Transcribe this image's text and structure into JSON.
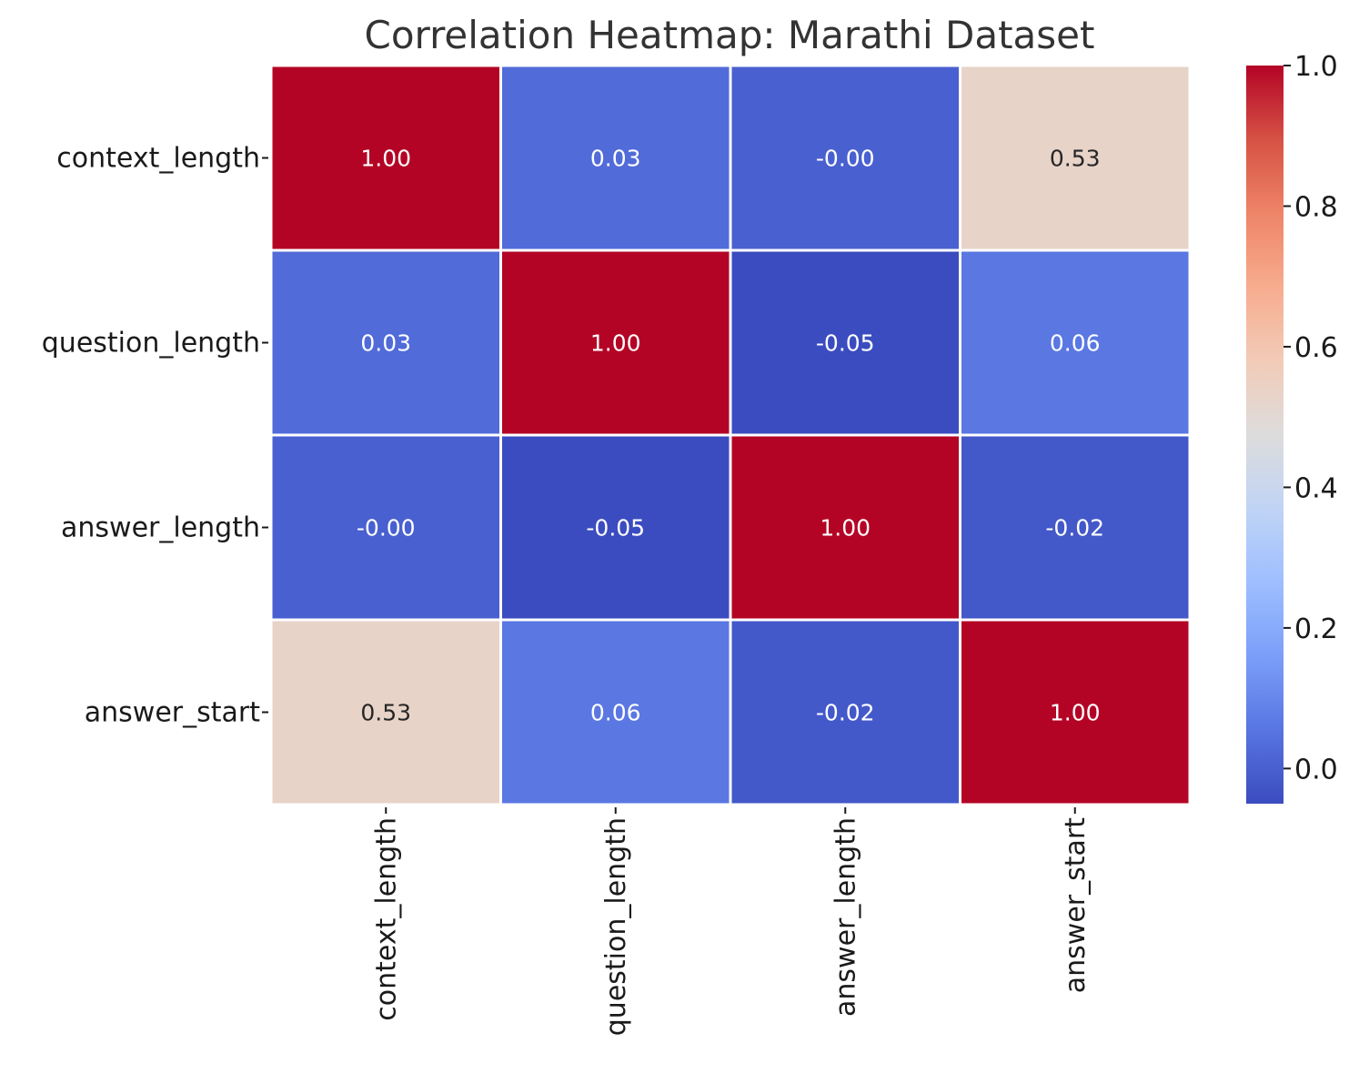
{
  "chart_data": {
    "type": "heatmap",
    "title": "Correlation Heatmap: Marathi Dataset",
    "xlabel": "",
    "ylabel": "",
    "row_labels": [
      "context_length",
      "question_length",
      "answer_length",
      "answer_start"
    ],
    "col_labels": [
      "context_length",
      "question_length",
      "answer_length",
      "answer_start"
    ],
    "values": [
      [
        1.0,
        0.03,
        -0.0,
        0.53
      ],
      [
        0.03,
        1.0,
        -0.05,
        0.06
      ],
      [
        -0.0,
        -0.05,
        1.0,
        -0.02
      ],
      [
        0.53,
        0.06,
        -0.02,
        1.0
      ]
    ],
    "cell_labels": [
      [
        "1.00",
        "0.03",
        "-0.00",
        "0.53"
      ],
      [
        "0.03",
        "1.00",
        "-0.05",
        "0.06"
      ],
      [
        "-0.00",
        "-0.05",
        "1.00",
        "-0.02"
      ],
      [
        "0.53",
        "0.06",
        "-0.02",
        "1.00"
      ]
    ],
    "colormap": "coolwarm",
    "vmin": -0.05,
    "vmax": 1.0,
    "colorbar": {
      "ticks": [
        0.0,
        0.2,
        0.4,
        0.6,
        0.8,
        1.0
      ],
      "tick_labels": [
        "0.0",
        "0.2",
        "0.4",
        "0.6",
        "0.8",
        "1.0"
      ]
    },
    "colors": {
      "title": "#333333",
      "label": "#1a1a1a",
      "grid_line": "#ffffff",
      "text_light": "#ffffff",
      "text_dark": "#262626"
    }
  }
}
